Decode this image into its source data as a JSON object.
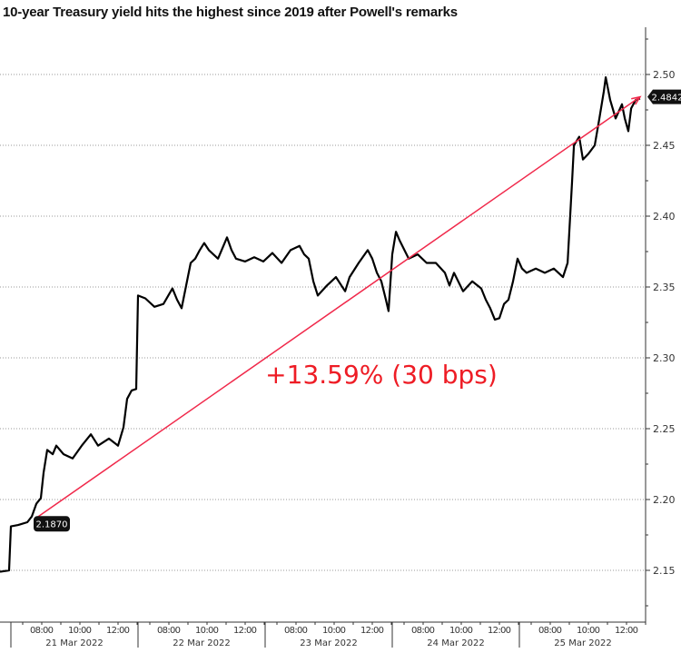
{
  "chart_data": {
    "type": "line",
    "title": "10-year Treasury yield hits the highest since 2019 after Powell's remarks",
    "xlabel": "",
    "ylabel": "",
    "ylim": [
      2.12,
      2.53
    ],
    "y_ticks": [
      "2.15",
      "2.20",
      "2.25",
      "2.30",
      "2.35",
      "2.40",
      "2.45",
      "2.50"
    ],
    "grid": true,
    "x_unit": "trading days since 21 Mar 2022 session start",
    "x_days": [
      "21 Mar 2022",
      "22 Mar 2022",
      "23 Mar 2022",
      "24 Mar 2022",
      "25 Mar 2022"
    ],
    "x_hours": [
      "08:00",
      "10:00",
      "12:00"
    ],
    "series": [
      {
        "name": "10-year Treasury yield",
        "color": "#000000",
        "points": [
          [
            -0.086,
            2.149
          ],
          [
            -0.014,
            2.15
          ],
          [
            0,
            2.181
          ],
          [
            0.057,
            2.182
          ],
          [
            0.129,
            2.184
          ],
          [
            0.164,
            2.188
          ],
          [
            0.2,
            2.197
          ],
          [
            0.236,
            2.201
          ],
          [
            0.257,
            2.219
          ],
          [
            0.286,
            2.235
          ],
          [
            0.329,
            2.232
          ],
          [
            0.357,
            2.238
          ],
          [
            0.414,
            2.232
          ],
          [
            0.486,
            2.229
          ],
          [
            0.557,
            2.238
          ],
          [
            0.629,
            2.246
          ],
          [
            0.686,
            2.238
          ],
          [
            0.771,
            2.243
          ],
          [
            0.843,
            2.238
          ],
          [
            0.886,
            2.251
          ],
          [
            0.914,
            2.271
          ],
          [
            0.95,
            2.277
          ],
          [
            0.986,
            2.278
          ],
          [
            1.0,
            2.344
          ],
          [
            1.057,
            2.342
          ],
          [
            1.129,
            2.336
          ],
          [
            1.2,
            2.338
          ],
          [
            1.271,
            2.349
          ],
          [
            1.307,
            2.341
          ],
          [
            1.343,
            2.335
          ],
          [
            1.414,
            2.367
          ],
          [
            1.45,
            2.37
          ],
          [
            1.486,
            2.376
          ],
          [
            1.521,
            2.381
          ],
          [
            1.557,
            2.376
          ],
          [
            1.629,
            2.37
          ],
          [
            1.7,
            2.385
          ],
          [
            1.736,
            2.376
          ],
          [
            1.771,
            2.37
          ],
          [
            1.843,
            2.368
          ],
          [
            1.914,
            2.371
          ],
          [
            1.986,
            2.368
          ],
          [
            2.057,
            2.374
          ],
          [
            2.129,
            2.367
          ],
          [
            2.2,
            2.376
          ],
          [
            2.271,
            2.379
          ],
          [
            2.307,
            2.373
          ],
          [
            2.343,
            2.37
          ],
          [
            2.379,
            2.354
          ],
          [
            2.414,
            2.344
          ],
          [
            2.486,
            2.351
          ],
          [
            2.557,
            2.357
          ],
          [
            2.629,
            2.347
          ],
          [
            2.664,
            2.357
          ],
          [
            2.736,
            2.367
          ],
          [
            2.807,
            2.376
          ],
          [
            2.843,
            2.37
          ],
          [
            2.879,
            2.36
          ],
          [
            2.914,
            2.354
          ],
          [
            2.95,
            2.341
          ],
          [
            2.971,
            2.333
          ],
          [
            3.0,
            2.373
          ],
          [
            3.029,
            2.389
          ],
          [
            3.057,
            2.383
          ],
          [
            3.129,
            2.37
          ],
          [
            3.2,
            2.373
          ],
          [
            3.271,
            2.367
          ],
          [
            3.343,
            2.367
          ],
          [
            3.414,
            2.36
          ],
          [
            3.45,
            2.351
          ],
          [
            3.486,
            2.36
          ],
          [
            3.557,
            2.347
          ],
          [
            3.629,
            2.354
          ],
          [
            3.7,
            2.349
          ],
          [
            3.736,
            2.341
          ],
          [
            3.771,
            2.335
          ],
          [
            3.807,
            2.327
          ],
          [
            3.843,
            2.328
          ],
          [
            3.879,
            2.338
          ],
          [
            3.914,
            2.341
          ],
          [
            3.95,
            2.354
          ],
          [
            3.986,
            2.37
          ],
          [
            4.021,
            2.363
          ],
          [
            4.057,
            2.36
          ],
          [
            4.129,
            2.363
          ],
          [
            4.2,
            2.36
          ],
          [
            4.271,
            2.363
          ],
          [
            4.343,
            2.357
          ],
          [
            4.379,
            2.367
          ],
          [
            4.414,
            2.424
          ],
          [
            4.429,
            2.45
          ],
          [
            4.471,
            2.456
          ],
          [
            4.5,
            2.44
          ],
          [
            4.543,
            2.444
          ],
          [
            4.593,
            2.45
          ],
          [
            4.629,
            2.469
          ],
          [
            4.664,
            2.488
          ],
          [
            4.679,
            2.498
          ],
          [
            4.714,
            2.482
          ],
          [
            4.757,
            2.469
          ],
          [
            4.807,
            2.479
          ],
          [
            4.829,
            2.469
          ],
          [
            4.857,
            2.46
          ],
          [
            4.879,
            2.476
          ],
          [
            4.914,
            2.482
          ],
          [
            4.95,
            2.483
          ]
        ]
      }
    ],
    "trend": {
      "from": [
        0.2,
        2.187
      ],
      "to": [
        4.95,
        2.4842
      ],
      "color": "#f0284a"
    },
    "labels": {
      "start": "2.1870",
      "last": "2.4842"
    },
    "annotation": {
      "text": "+13.59% (30 bps)",
      "color": "#ee1c25"
    }
  }
}
